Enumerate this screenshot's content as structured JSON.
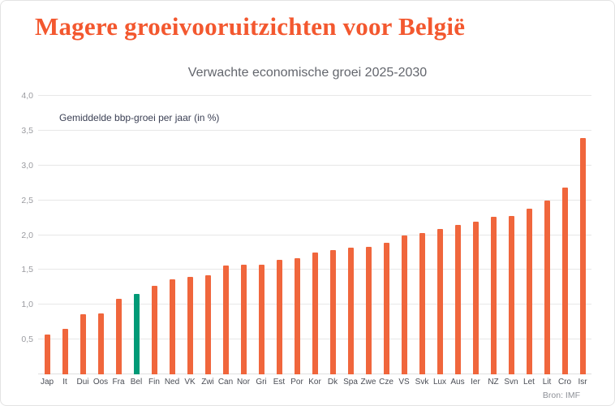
{
  "page": {
    "title": "Magere groeivooruitzichten voor België",
    "subtitle": "Verwachte economische groei 2025-2030",
    "source": "Bron: IMF"
  },
  "colors": {
    "title": "#f3582f",
    "bar": "#f0663c",
    "highlight": "#009a77",
    "gridline": "#e7e7e7"
  },
  "chart_data": {
    "type": "bar",
    "title": "Verwachte economische groei 2025-2030",
    "ylabel": "Gemiddelde bbp-groei per jaar (in %)",
    "ylim": [
      0,
      4.0
    ],
    "ytick_step": 0.5,
    "grid": true,
    "legend": "none",
    "decimal_separator": ",",
    "highlight_category": "Bel",
    "categories": [
      "Jap",
      "It",
      "Dui",
      "Oos",
      "Fra",
      "Bel",
      "Fin",
      "Ned",
      "VK",
      "Zwi",
      "Can",
      "Nor",
      "Gri",
      "Est",
      "Por",
      "Kor",
      "Dk",
      "Spa",
      "Zwe",
      "Cze",
      "VS",
      "Svk",
      "Lux",
      "Aus",
      "Ier",
      "NZ",
      "Svn",
      "Let",
      "Lit",
      "Cro",
      "Isr"
    ],
    "values": [
      0.57,
      0.65,
      0.86,
      0.88,
      1.08,
      1.16,
      1.27,
      1.36,
      1.4,
      1.42,
      1.56,
      1.58,
      1.58,
      1.64,
      1.67,
      1.75,
      1.78,
      1.82,
      1.83,
      1.89,
      1.99,
      2.03,
      2.09,
      2.15,
      2.19,
      2.26,
      2.28,
      2.38,
      2.49,
      2.68,
      3.39
    ],
    "bar_color": "#f0663c",
    "highlight_color": "#009a77"
  }
}
